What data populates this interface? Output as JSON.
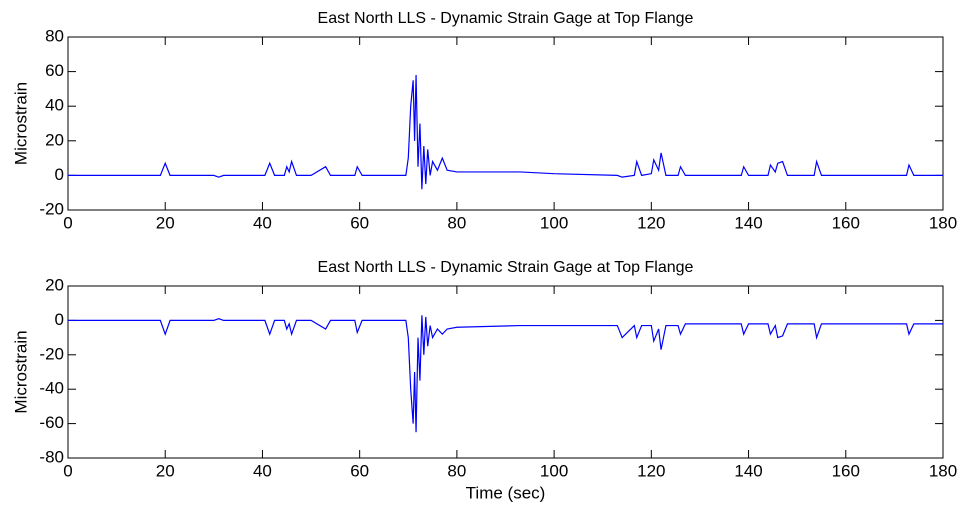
{
  "chart_data": [
    {
      "type": "line",
      "title": "East North LLS - Dynamic Strain Gage at Top Flange",
      "y_label": "Microstrain",
      "x": [
        0,
        19,
        20,
        21,
        30,
        31,
        32,
        40.5,
        41.5,
        42.5,
        44.5,
        45,
        45.5,
        46,
        47,
        50,
        53,
        54,
        59,
        59.5,
        60.5,
        69.5,
        70,
        70.5,
        71,
        71.3,
        71.6,
        72,
        72.4,
        72.8,
        73.2,
        73.6,
        74,
        74.5,
        75,
        76,
        77,
        78,
        80,
        93,
        100,
        113,
        114,
        116.5,
        117,
        118,
        120,
        120.5,
        121.5,
        122,
        123,
        125.5,
        126,
        127,
        138.5,
        139,
        140,
        144,
        144.5,
        145.5,
        146,
        147,
        148,
        153.5,
        154,
        155,
        172.5,
        173,
        174,
        180
      ],
      "series": [
        {
          "color": "#0000ff",
          "values": [
            0,
            0,
            7,
            0,
            0,
            -1,
            0,
            0,
            7,
            0,
            0,
            5,
            2,
            8,
            0,
            0,
            5,
            0,
            0,
            5,
            0,
            0,
            10,
            40,
            55,
            20,
            58,
            5,
            30,
            -8,
            17,
            -5,
            15,
            0,
            8,
            3,
            10,
            3,
            2,
            2,
            1,
            0,
            -1,
            0,
            8,
            0,
            1,
            9,
            3,
            13,
            0,
            0,
            5,
            0,
            0,
            5,
            0,
            0,
            6,
            2,
            7,
            8,
            0,
            0,
            8,
            0,
            0,
            6,
            0,
            0
          ]
        }
      ],
      "xlim": [
        0,
        180
      ],
      "xticks": [
        0,
        20,
        40,
        60,
        80,
        100,
        120,
        140,
        160,
        180
      ],
      "ylim": [
        -20,
        80
      ],
      "yticks": [
        -20,
        0,
        20,
        40,
        60,
        80
      ],
      "grid": false
    },
    {
      "type": "line",
      "title": "East North LLS - Dynamic Strain Gage at Top Flange",
      "y_label": "Microstrain",
      "x_label": "Time (sec)",
      "x": [
        0,
        19,
        20,
        21,
        30,
        31,
        32,
        40.5,
        41.5,
        42.5,
        44.5,
        45,
        45.5,
        46,
        47,
        50,
        53,
        54,
        59,
        59.5,
        60.5,
        69.5,
        70,
        70.5,
        71,
        71.3,
        71.6,
        72,
        72.4,
        72.8,
        73.2,
        73.6,
        74,
        74.5,
        75,
        76,
        77,
        78,
        80,
        93,
        100,
        113,
        114,
        116.5,
        117,
        118,
        120,
        120.5,
        121.5,
        122,
        123,
        125.5,
        126,
        127,
        138.5,
        139,
        140,
        144,
        144.5,
        145.5,
        146,
        147,
        148,
        153.5,
        154,
        155,
        172.5,
        173,
        174,
        180
      ],
      "series": [
        {
          "color": "#0000ff",
          "values": [
            0,
            0,
            -8,
            0,
            0,
            1,
            0,
            0,
            -8,
            0,
            0,
            -5,
            -2,
            -8,
            0,
            0,
            -5,
            0,
            0,
            -7,
            0,
            0,
            -10,
            -40,
            -60,
            -30,
            -65,
            -10,
            -35,
            3,
            -20,
            2,
            -15,
            -3,
            -10,
            -5,
            -8,
            -5,
            -4,
            -3,
            -3,
            -3,
            -10,
            -3,
            -10,
            -3,
            -3,
            -12,
            -5,
            -17,
            -3,
            -3,
            -8,
            -2,
            -2,
            -8,
            -2,
            -2,
            -8,
            -3,
            -10,
            -9,
            -2,
            -2,
            -10,
            -2,
            -2,
            -8,
            -2,
            -2
          ]
        }
      ],
      "xlim": [
        0,
        180
      ],
      "xticks": [
        0,
        20,
        40,
        60,
        80,
        100,
        120,
        140,
        160,
        180
      ],
      "ylim": [
        -80,
        20
      ],
      "yticks": [
        -80,
        -60,
        -40,
        -20,
        0,
        20
      ],
      "grid": false
    }
  ]
}
